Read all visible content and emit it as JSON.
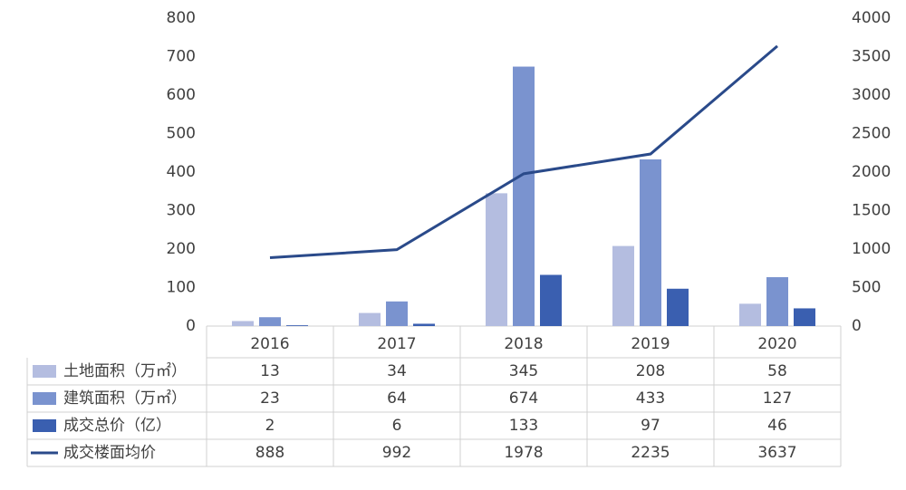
{
  "chart_data": {
    "type": "bar",
    "categories": [
      "2016",
      "2017",
      "2018",
      "2019",
      "2020"
    ],
    "series": [
      {
        "name": "土地面积（万㎡）",
        "color": "#b4bde0",
        "type": "bar",
        "values": [
          13,
          34,
          345,
          208,
          58
        ]
      },
      {
        "name": "建筑面积（万㎡）",
        "color": "#7a93cf",
        "type": "bar",
        "values": [
          23,
          64,
          674,
          433,
          127
        ]
      },
      {
        "name": "成交总价（亿）",
        "color": "#3a5fb0",
        "type": "bar",
        "values": [
          2,
          6,
          133,
          97,
          46
        ]
      },
      {
        "name": "成交楼面均价",
        "color": "#2a4a8a",
        "type": "line",
        "axis": "y2",
        "values": [
          888,
          992,
          1978,
          2235,
          3637
        ]
      }
    ],
    "ylim": [
      0,
      800
    ],
    "yticks": [
      0,
      100,
      200,
      300,
      400,
      500,
      600,
      700,
      800
    ],
    "y2lim": [
      0,
      4000
    ],
    "y2ticks": [
      0,
      500,
      1000,
      1500,
      2000,
      2500,
      3000,
      3500,
      4000
    ],
    "grid": false
  }
}
